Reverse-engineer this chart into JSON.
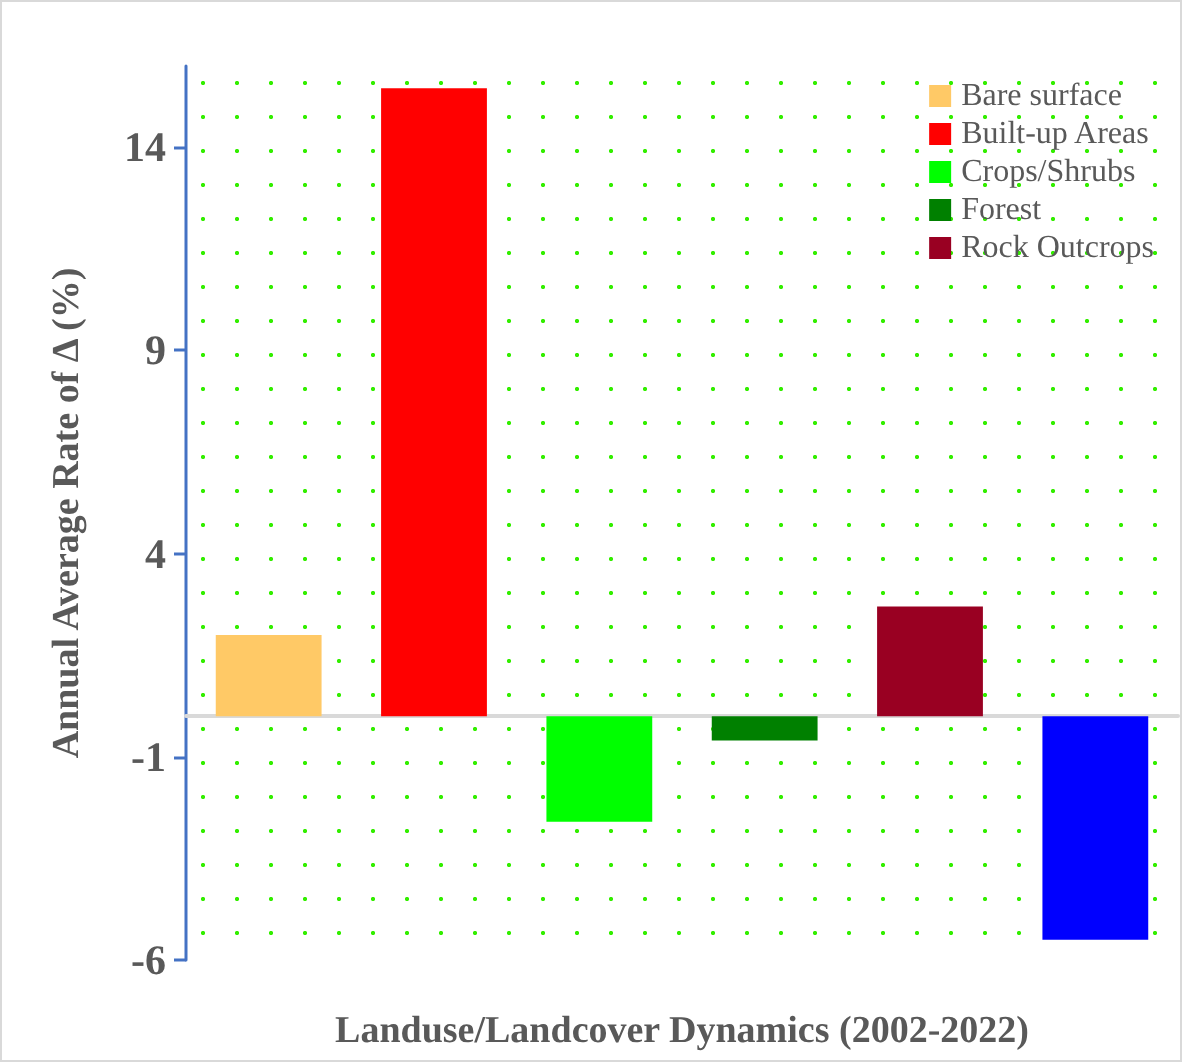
{
  "chart_data": {
    "type": "bar",
    "xlabel": "Landuse/Landcover Dynamics (2002-2022)",
    "ylabel": "Annual Average Rate of Δ (%)",
    "categories": [
      null,
      null,
      null,
      null,
      null,
      null
    ],
    "series": [
      {
        "name": "Bare surface",
        "color": "#ffc966",
        "values": [
          2.0,
          null,
          null,
          null,
          null,
          null
        ]
      },
      {
        "name": "Built-up Areas",
        "color": "#ff0000",
        "values": [
          null,
          15.45,
          null,
          null,
          null,
          null
        ]
      },
      {
        "name": "Crops/Shrubs",
        "color": "#00ff00",
        "values": [
          null,
          null,
          -2.6,
          null,
          null,
          null
        ]
      },
      {
        "name": "Forest",
        "color": "#008000",
        "values": [
          null,
          null,
          null,
          -0.6,
          null,
          null
        ]
      },
      {
        "name": "Rock Outcrops",
        "color": "#990022",
        "values": [
          null,
          null,
          null,
          null,
          2.7,
          null
        ]
      },
      {
        "color": "#0000ff",
        "values": [
          null,
          null,
          null,
          null,
          null,
          -5.5
        ]
      }
    ],
    "ylim": [
      -6,
      16
    ],
    "yticks": [
      -6,
      -1,
      4,
      9,
      14
    ],
    "legend": "top right"
  }
}
